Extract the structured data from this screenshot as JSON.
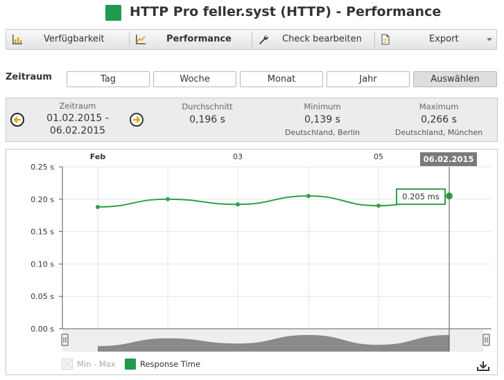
{
  "header": {
    "title": "HTTP Pro feller.syst (HTTP) - Performance",
    "status_color": "#1f9b4e"
  },
  "toolbar": {
    "items": [
      {
        "label": "Verfügbarkeit",
        "icon": "availability-chart-icon"
      },
      {
        "label": "Performance",
        "icon": "performance-chart-icon",
        "active": true
      },
      {
        "label": "Check bearbeiten",
        "icon": "wrench-icon"
      },
      {
        "label": "Export",
        "icon": "export-document-icon",
        "dropdown": true
      }
    ]
  },
  "range": {
    "label": "Zeitraum",
    "buttons": [
      "Tag",
      "Woche",
      "Monat",
      "Jahr",
      "Auswählen"
    ],
    "active": "Auswählen"
  },
  "summary": {
    "period_label": "Zeitraum",
    "period_start": "01.02.2015 -",
    "period_end": "06.02.2015",
    "average_label": "Durchschnitt",
    "average_value": "0,196 s",
    "min_label": "Minimum",
    "min_value": "0,139 s",
    "min_location": "Deutschland, Berlin",
    "max_label": "Maximum",
    "max_value": "0,266 s",
    "max_location": "Deutschland, München"
  },
  "chart": {
    "tooltip_date": "06.02.2015",
    "tooltip_value": "0.205 ms",
    "legend_min_max": "Min - Max",
    "legend_response": "Response Time",
    "line_color": "#2ea043",
    "nav_fill_color": "#8a8a8a"
  },
  "chart_data": {
    "type": "line",
    "x": [
      "01.02.2015",
      "02.02.2015",
      "03.02.2015",
      "04.02.2015",
      "05.02.2015",
      "06.02.2015"
    ],
    "x_tick_labels": [
      "Feb",
      "03",
      "05"
    ],
    "y_tick_labels": [
      "0.25 s",
      "0.20 s",
      "0.15 s",
      "0.10 s",
      "0.05 s",
      "0.00 s"
    ],
    "series": [
      {
        "name": "Response Time",
        "values": [
          0.188,
          0.2,
          0.192,
          0.205,
          0.19,
          0.205
        ]
      }
    ],
    "ylim": [
      0,
      0.25
    ],
    "grid": true,
    "legend": "bottom-left"
  }
}
